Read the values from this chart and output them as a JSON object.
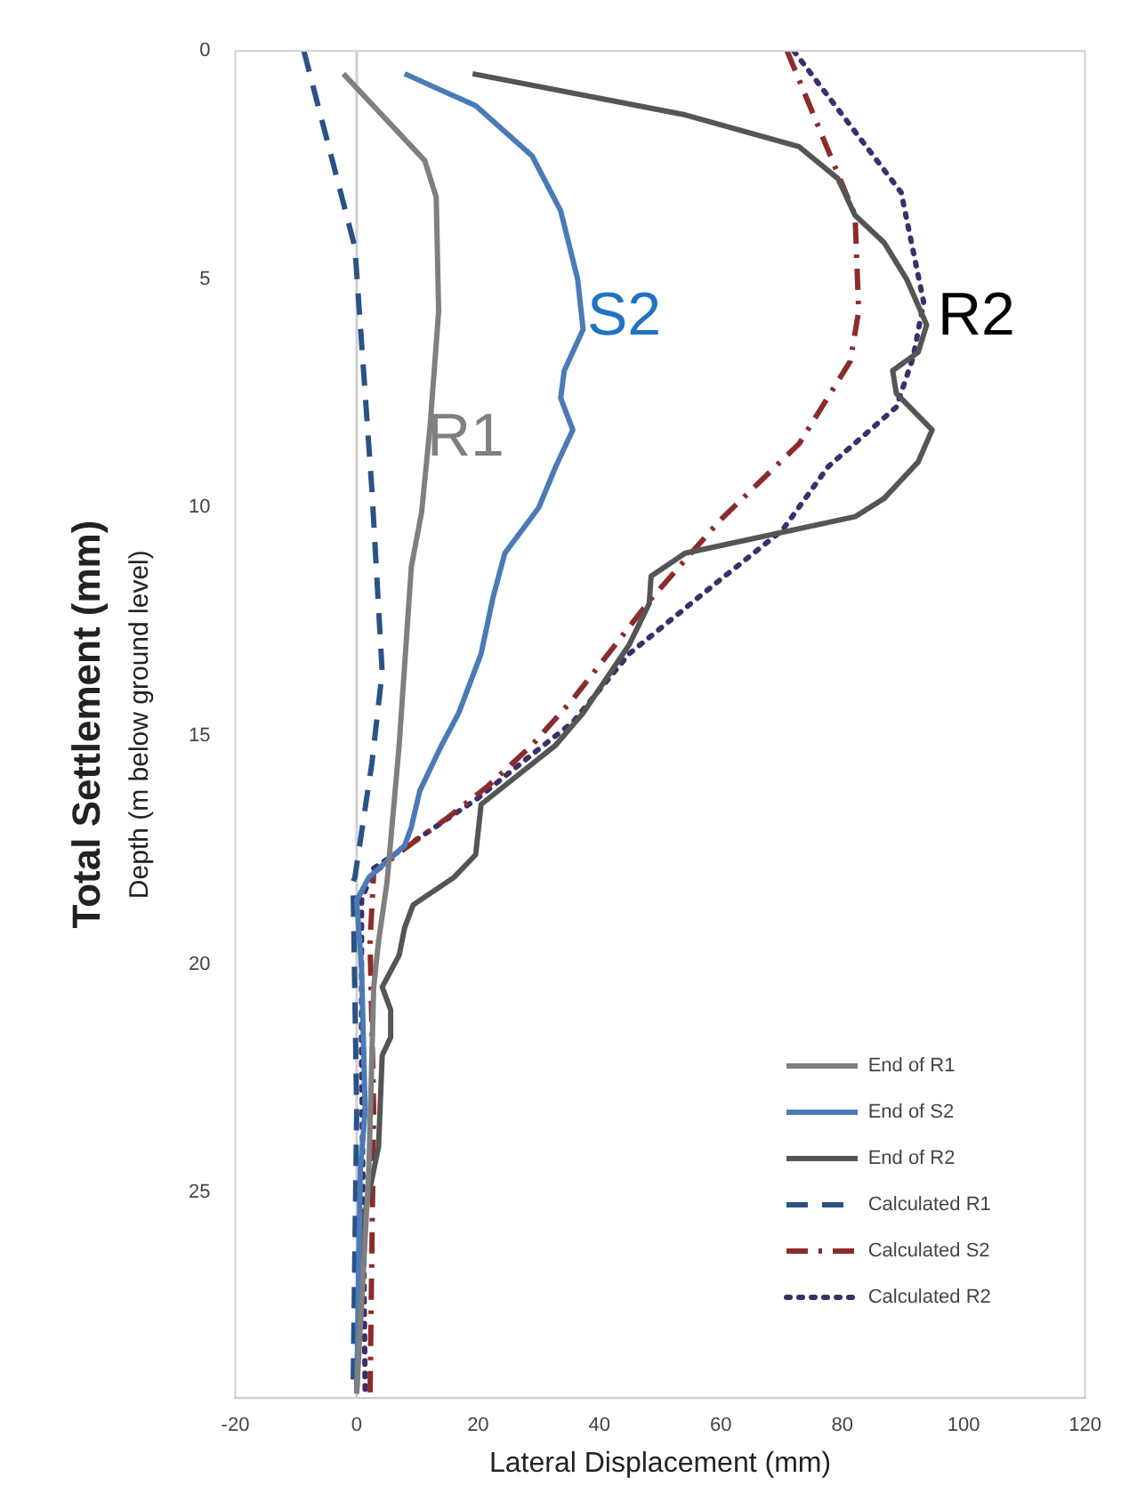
{
  "chart_data": {
    "type": "line",
    "xlabel": "Lateral Displacement (mm)",
    "ylabel": "Depth (m below ground level)",
    "xlim": [
      -20,
      120
    ],
    "xticks": [
      -20,
      0,
      20,
      40,
      60,
      80,
      100,
      120
    ],
    "ylim": [
      29.5,
      0
    ],
    "yticks": [
      0,
      5,
      10,
      15,
      20,
      25
    ],
    "grid": false,
    "legend": "bottom right",
    "marker": "none",
    "ref_lines": [
      {
        "axis": "x",
        "value": 0,
        "color": "#d0d0d0"
      }
    ],
    "annotations": [
      "Total Settlement (mm)",
      "R1",
      "S2",
      "R2"
    ],
    "series": [
      {
        "name": "End of R1",
        "color": "#7f7f7f",
        "line_style": "solid",
        "x": [
          -2.2,
          11.2,
          13.1,
          13.5,
          12.1,
          10.7,
          9.0,
          7.0,
          5.0,
          3.6,
          2.8,
          2.0,
          0
        ],
        "values": [
          0.5,
          2.4,
          3.2,
          5.7,
          8.2,
          10.1,
          11.3,
          15.2,
          18.2,
          19.5,
          20.5,
          24.5,
          29.4
        ]
      },
      {
        "name": "End of S2",
        "color": "#4a7bb7",
        "line_style": "solid",
        "x": [
          7.9,
          19.6,
          28.9,
          33.6,
          36.4,
          37.3,
          34.2,
          33.6,
          35.6,
          32.8,
          30.0,
          24.4,
          22.4,
          20.5,
          16.8,
          14.0,
          10.4,
          9.0,
          7.9,
          2.0,
          0,
          0.8,
          1.4,
          0.6,
          0
        ],
        "values": [
          0.5,
          1.2,
          2.3,
          3.5,
          5.0,
          6.1,
          7.0,
          7.6,
          8.3,
          9.1,
          10.0,
          11.0,
          12.0,
          13.2,
          14.5,
          15.2,
          16.2,
          17.0,
          17.4,
          18.1,
          18.6,
          20.1,
          23.2,
          24.5,
          29.4
        ]
      },
      {
        "name": "End of R2",
        "color": "#555555",
        "line_style": "solid",
        "x": [
          19.1,
          54.1,
          72.9,
          79.3,
          82.1,
          86.9,
          90.6,
          93.9,
          92.5,
          88.3,
          88.9,
          94.8,
          92.5,
          86.9,
          82.1,
          54.1,
          48.5,
          48.2,
          44.9,
          37.3,
          32.8,
          20.5,
          19.6,
          16.0,
          9.3,
          7.9,
          7.0,
          4.2,
          5.6,
          5.6,
          4.2,
          3.6,
          0.8,
          0
        ],
        "values": [
          0.5,
          1.4,
          2.1,
          2.8,
          3.6,
          4.2,
          5.0,
          6.0,
          6.6,
          7.0,
          7.5,
          8.3,
          9.0,
          9.8,
          10.2,
          11.0,
          11.5,
          12.1,
          13.0,
          14.5,
          15.2,
          16.5,
          17.6,
          18.1,
          18.7,
          19.2,
          19.8,
          20.5,
          21.0,
          21.6,
          22.0,
          24.0,
          25.8,
          29.4
        ]
      },
      {
        "name": "Calculated R1",
        "color": "#2b5286",
        "line_style": "dashed",
        "x": [
          -8.7,
          -0.3,
          2.5,
          4.2,
          2.5,
          -0.3,
          -0.6,
          0,
          -0.6
        ],
        "values": [
          0,
          4.3,
          9.6,
          13.6,
          15.6,
          18.1,
          18.2,
          23.2,
          29.4
        ]
      },
      {
        "name": "Calculated S2",
        "color": "#8b2c2c",
        "line_style": "dashdot",
        "x": [
          70.9,
          82.1,
          82.7,
          81.3,
          72.9,
          59.7,
          48.5,
          35.6,
          28.9,
          21.6,
          14.9,
          7.6,
          2.8,
          2.2,
          2.8,
          2.2
        ],
        "values": [
          0,
          3.6,
          5.7,
          6.8,
          8.6,
          10.3,
          12.0,
          14.2,
          15.2,
          16.1,
          16.8,
          17.5,
          18.0,
          19.5,
          23.2,
          29.4
        ]
      },
      {
        "name": "Calculated R2",
        "color": "#3b2f6b",
        "line_style": "dotted",
        "x": [
          72.0,
          89.7,
          93.4,
          91.7,
          88.9,
          77.7,
          70.1,
          59.7,
          44.9,
          35.6,
          28.0,
          19.6,
          2.8,
          0.8,
          0.8,
          1.4
        ],
        "values": [
          0,
          3.1,
          5.5,
          6.7,
          7.8,
          9.1,
          10.5,
          11.6,
          13.2,
          14.7,
          15.5,
          16.4,
          17.9,
          18.6,
          22.0,
          29.4
        ]
      }
    ]
  }
}
